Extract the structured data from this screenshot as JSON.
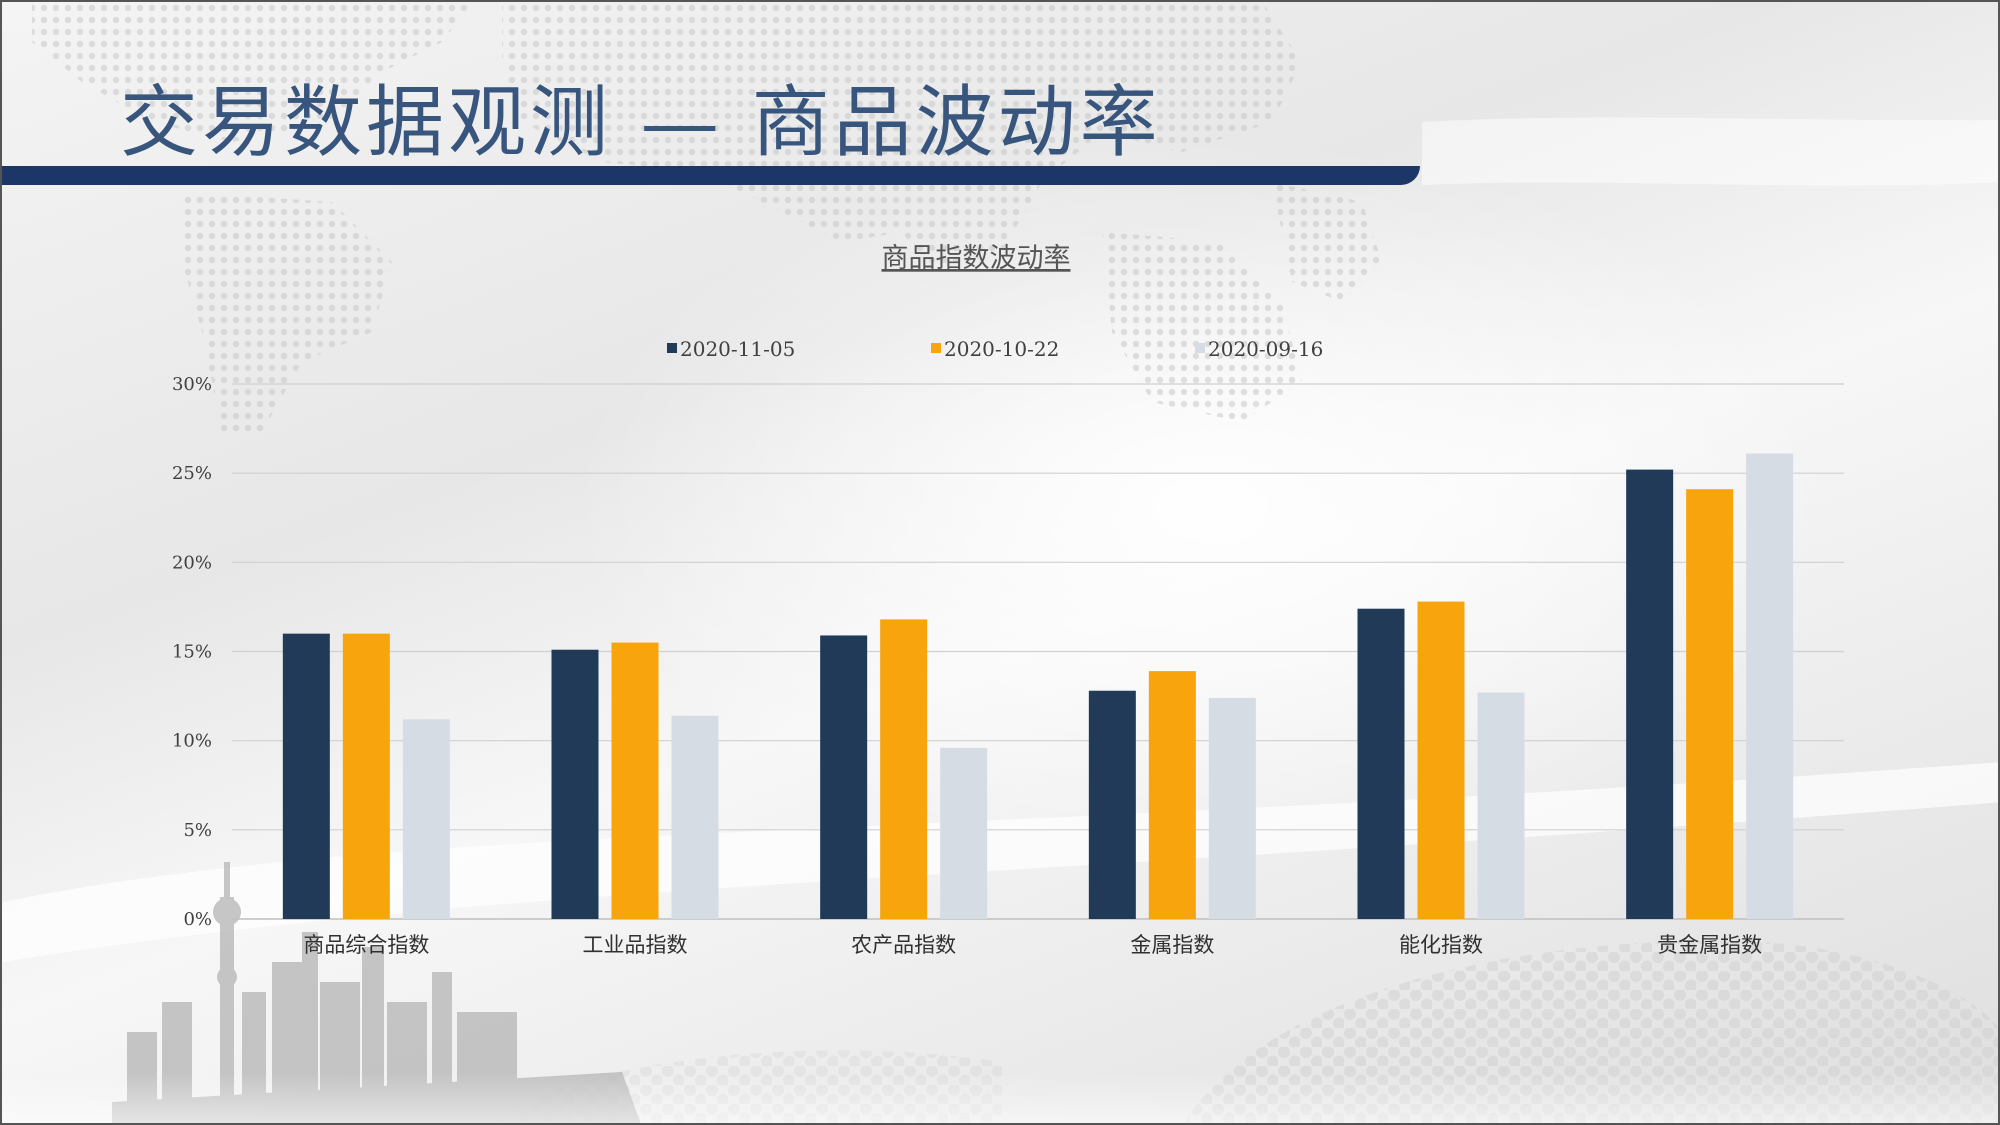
{
  "slide": {
    "title": "交易数据观测 — 商品波动率"
  },
  "colors": {
    "title": "#38557e",
    "title_bar": "#1c3668",
    "grid": "#d0d0d0"
  },
  "chart_data": {
    "type": "bar",
    "title": "商品指数波动率",
    "xlabel": "",
    "ylabel": "",
    "categories": [
      "商品综合指数",
      "工业品指数",
      "农产品指数",
      "金属指数",
      "能化指数",
      "贵金属指数"
    ],
    "series": [
      {
        "name": "2020-11-05",
        "color": "#203a58",
        "values": [
          16.0,
          15.1,
          15.9,
          12.8,
          17.4,
          25.2
        ]
      },
      {
        "name": "2020-10-22",
        "color": "#f8a40c",
        "values": [
          16.0,
          15.5,
          16.8,
          13.9,
          17.8,
          24.1
        ]
      },
      {
        "name": "2020-09-16",
        "color": "#d6dce4",
        "values": [
          11.2,
          11.4,
          9.6,
          12.4,
          12.7,
          26.1
        ]
      }
    ],
    "ylim": [
      0,
      30
    ],
    "yticks": [
      0,
      5,
      10,
      15,
      20,
      25,
      30
    ],
    "ytick_labels": [
      "0%",
      "5%",
      "10%",
      "15%",
      "20%",
      "25%",
      "30%"
    ],
    "grid": true,
    "legend": "top"
  }
}
